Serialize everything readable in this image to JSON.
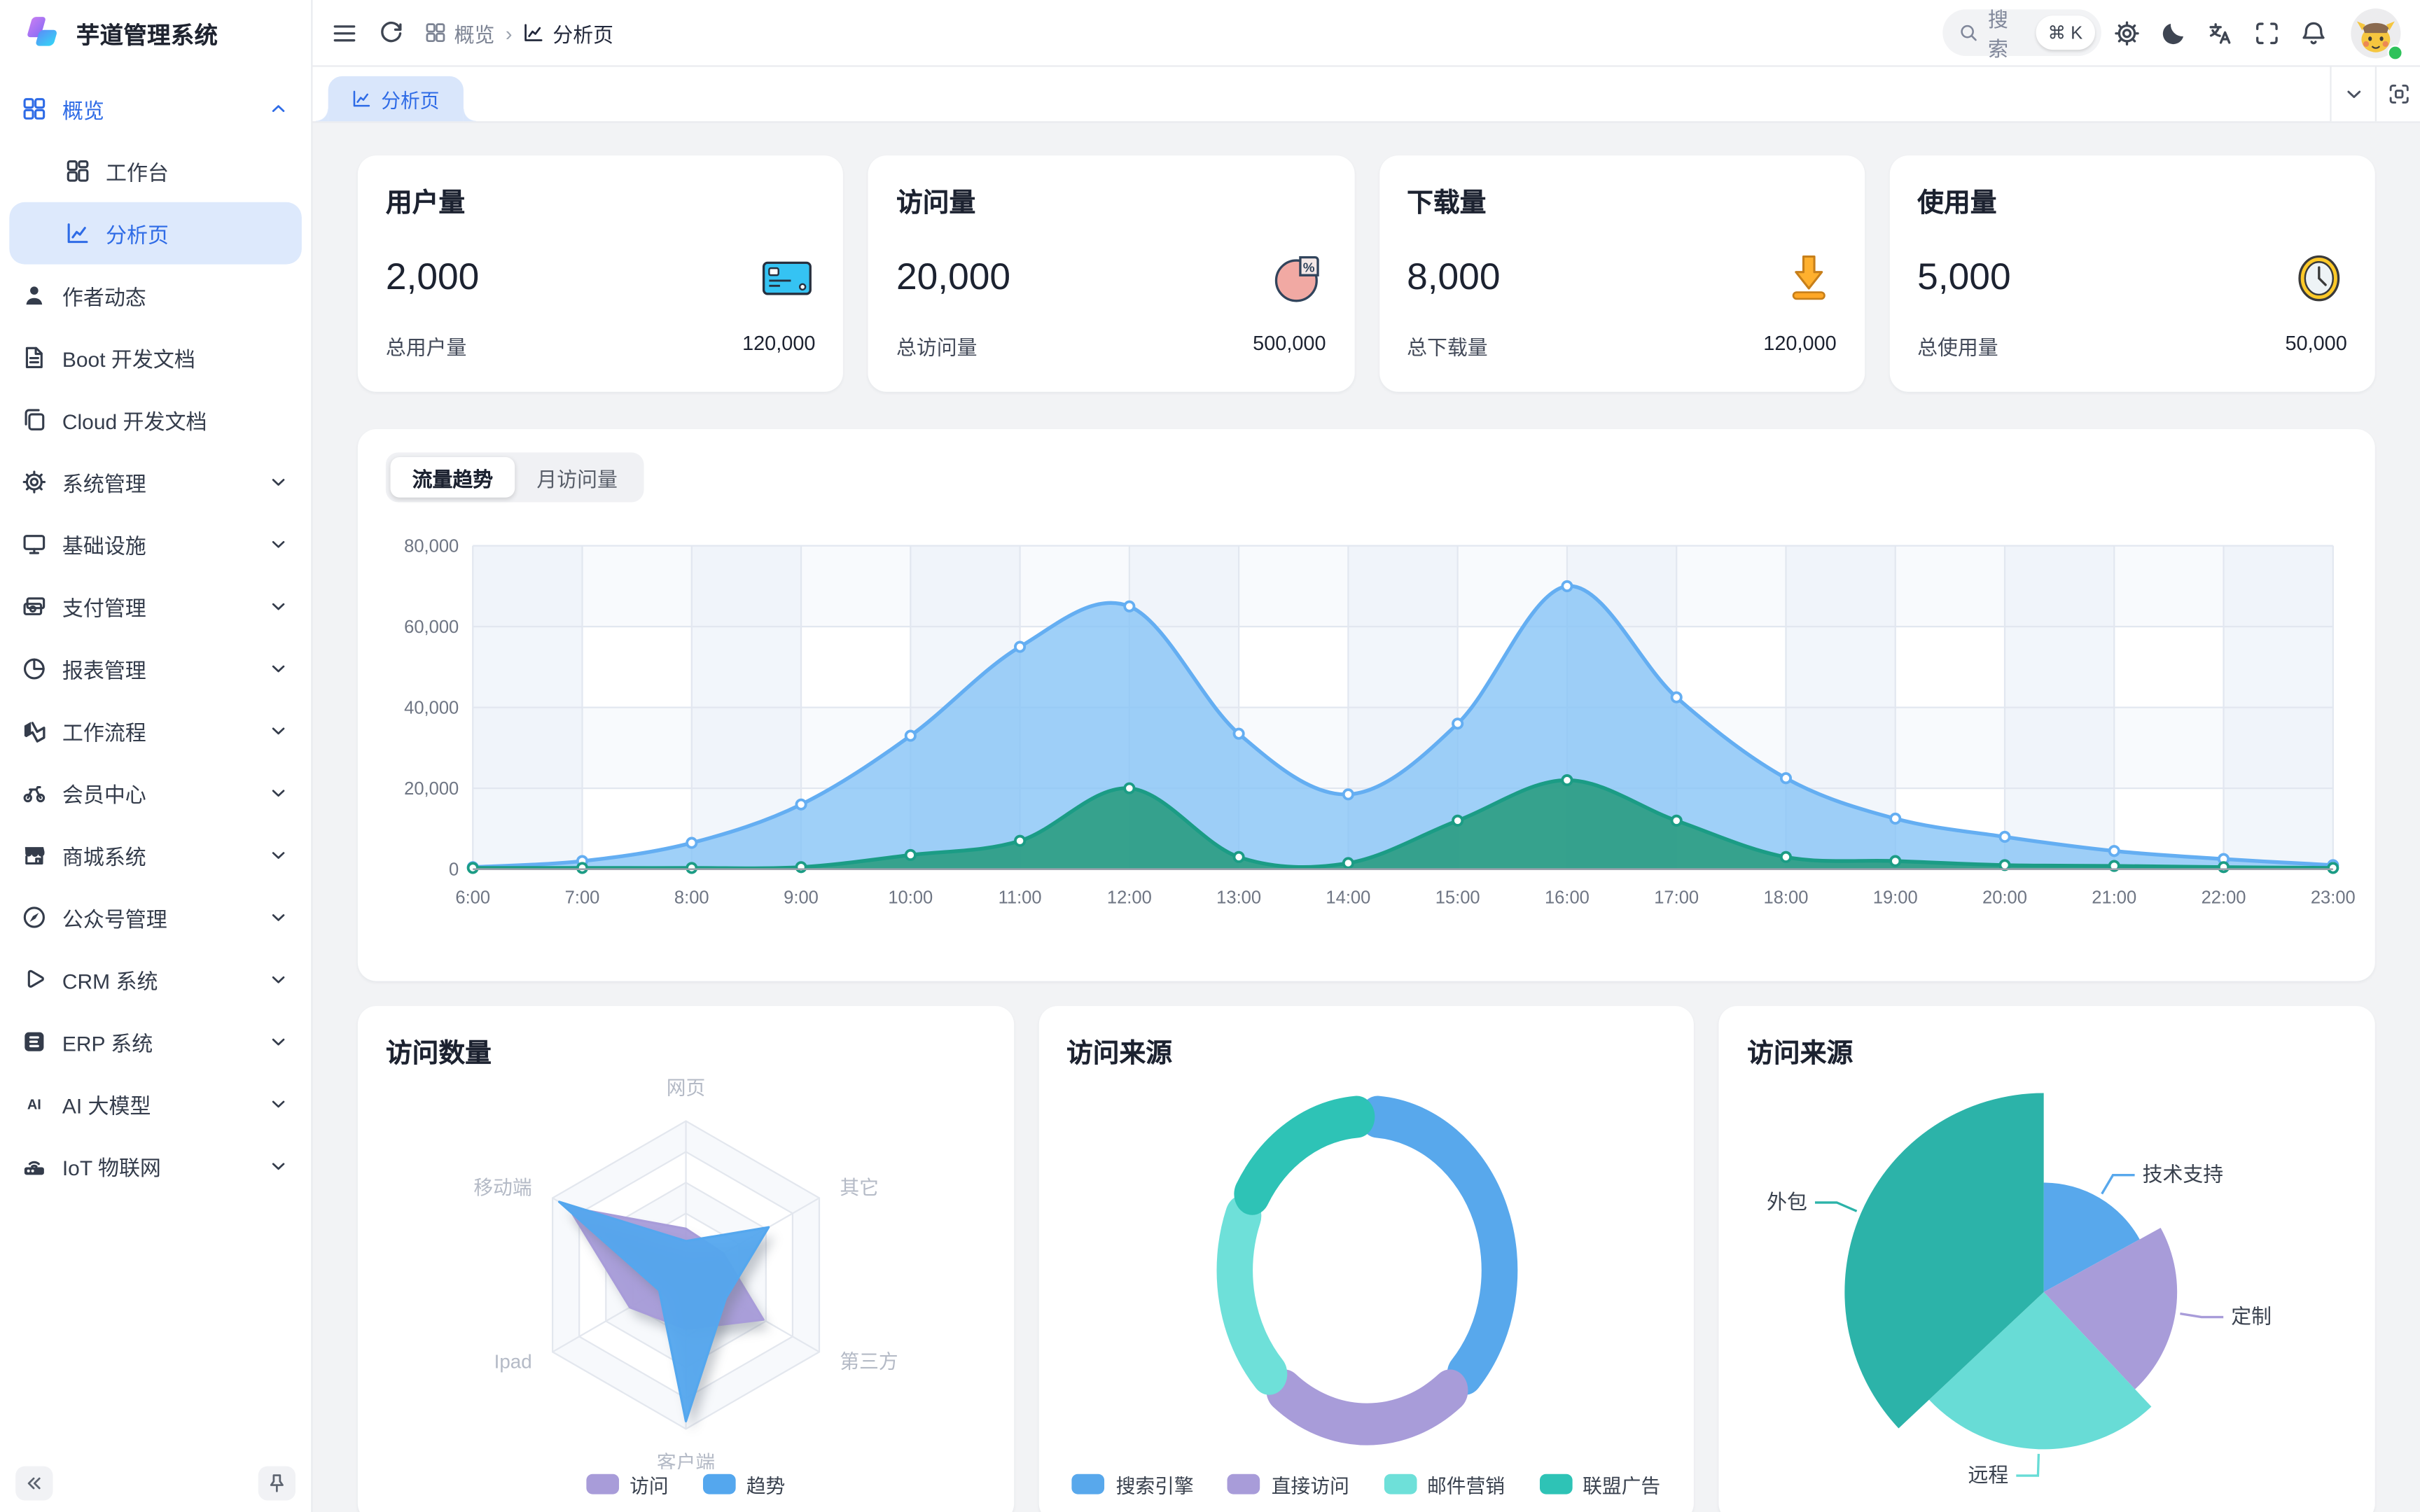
{
  "app": {
    "title": "芋道管理系统"
  },
  "sidebar": {
    "items": [
      {
        "icon": "grid",
        "label": "概览",
        "chevron": "up",
        "primary": true
      },
      {
        "icon": "workbench",
        "label": "工作台",
        "child": true
      },
      {
        "icon": "analysis",
        "label": "分析页",
        "child": true,
        "active": true
      },
      {
        "icon": "user",
        "label": "作者动态"
      },
      {
        "icon": "doc",
        "label": "Boot 开发文档"
      },
      {
        "icon": "docs",
        "label": "Cloud 开发文档"
      },
      {
        "icon": "gear",
        "label": "系统管理",
        "chevron": "down"
      },
      {
        "icon": "monitor",
        "label": "基础设施",
        "chevron": "down"
      },
      {
        "icon": "wallet",
        "label": "支付管理",
        "chevron": "down"
      },
      {
        "icon": "pie",
        "label": "报表管理",
        "chevron": "down"
      },
      {
        "icon": "flow",
        "label": "工作流程",
        "chevron": "down"
      },
      {
        "icon": "bike",
        "label": "会员中心",
        "chevron": "down"
      },
      {
        "icon": "shop",
        "label": "商城系统",
        "chevron": "down"
      },
      {
        "icon": "compass",
        "label": "公众号管理",
        "chevron": "down"
      },
      {
        "icon": "crm",
        "label": "CRM 系统",
        "chevron": "down"
      },
      {
        "icon": "erp",
        "label": "ERP 系统",
        "chevron": "down"
      },
      {
        "icon": "ai",
        "label": "AI 大模型",
        "chevron": "down"
      },
      {
        "icon": "iot",
        "label": "IoT 物联网",
        "chevron": "down"
      }
    ]
  },
  "header": {
    "breadcrumb": [
      {
        "icon": "grid",
        "label": "概览"
      },
      {
        "icon": "analysis",
        "label": "分析页"
      }
    ],
    "search": {
      "placeholder": "搜索",
      "shortcut": "⌘ K"
    }
  },
  "tabs": {
    "active_label": "分析页"
  },
  "stats": [
    {
      "title": "用户量",
      "value": "2,000",
      "icon": "bank-card",
      "total_label": "总用户量",
      "total_value": "120,000"
    },
    {
      "title": "访问量",
      "value": "20,000",
      "icon": "pie-percent",
      "total_label": "总访问量",
      "total_value": "500,000"
    },
    {
      "title": "下载量",
      "value": "8,000",
      "icon": "download",
      "total_label": "总下载量",
      "total_value": "120,000"
    },
    {
      "title": "使用量",
      "value": "5,000",
      "icon": "clock",
      "total_label": "总使用量",
      "total_value": "50,000"
    }
  ],
  "chart_data": [
    {
      "type": "area",
      "name": "流量趋势",
      "tabs": [
        "流量趋势",
        "月访问量"
      ],
      "active_tab": "流量趋势",
      "x": [
        "6:00",
        "7:00",
        "8:00",
        "9:00",
        "10:00",
        "11:00",
        "12:00",
        "13:00",
        "14:00",
        "15:00",
        "16:00",
        "17:00",
        "18:00",
        "19:00",
        "20:00",
        "21:00",
        "22:00",
        "23:00"
      ],
      "ylim": [
        0,
        80000
      ],
      "yticks": [
        "0",
        "20,000",
        "40,000",
        "60,000",
        "80,000"
      ],
      "grid": true,
      "series": [
        {
          "name": "visits-blue",
          "color": "#64aef2",
          "fill": "rgba(135,196,246,0.8)",
          "values": [
            500,
            2000,
            6500,
            16000,
            33000,
            55000,
            65000,
            33500,
            18500,
            36000,
            70000,
            42500,
            22500,
            12500,
            8000,
            4500,
            2500,
            1000
          ]
        },
        {
          "name": "trend-teal",
          "color": "#1b9c85",
          "fill": "rgba(45,157,131,0.92)",
          "values": [
            300,
            300,
            300,
            500,
            3500,
            7000,
            20000,
            3000,
            1500,
            12000,
            22000,
            12000,
            3000,
            2000,
            1000,
            800,
            500,
            300
          ]
        }
      ]
    },
    {
      "type": "radar",
      "title": "访问数量",
      "indicators": [
        "网页",
        "其它",
        "第三方",
        "客户端",
        "Ipad",
        "移动端"
      ],
      "max_pct": 100,
      "series": [
        {
          "name": "访问",
          "color": "#a89cd9",
          "values_pct": [
            30,
            28,
            58,
            35,
            42,
            88
          ]
        },
        {
          "name": "趋势",
          "color": "#54a7ee",
          "values_pct": [
            22,
            62,
            30,
            95,
            20,
            95
          ]
        }
      ],
      "legend_position": "bottom"
    },
    {
      "type": "donut",
      "title": "访问来源",
      "slices": [
        {
          "name": "搜索引擎",
          "pct": 38,
          "color": "#58a8ec"
        },
        {
          "name": "直接访问",
          "pct": 24,
          "color": "#a89cd9"
        },
        {
          "name": "邮件营销",
          "pct": 20,
          "color": "#6ee0d9"
        },
        {
          "name": "联盟广告",
          "pct": 18,
          "color": "#2ec3b6"
        }
      ],
      "legend_position": "bottom"
    },
    {
      "type": "pie",
      "title": "访问来源",
      "slices": [
        {
          "name": "技术支持",
          "angle_pct": 17,
          "radius_pct": 55,
          "color": "#58a8ec"
        },
        {
          "name": "定制",
          "angle_pct": 21,
          "radius_pct": 67,
          "color": "#a89cd9"
        },
        {
          "name": "远程",
          "angle_pct": 25,
          "radius_pct": 79,
          "color": "#68dcd6"
        },
        {
          "name": "外包",
          "angle_pct": 37,
          "radius_pct": 100,
          "color": "#2cb3a9"
        }
      ]
    }
  ]
}
